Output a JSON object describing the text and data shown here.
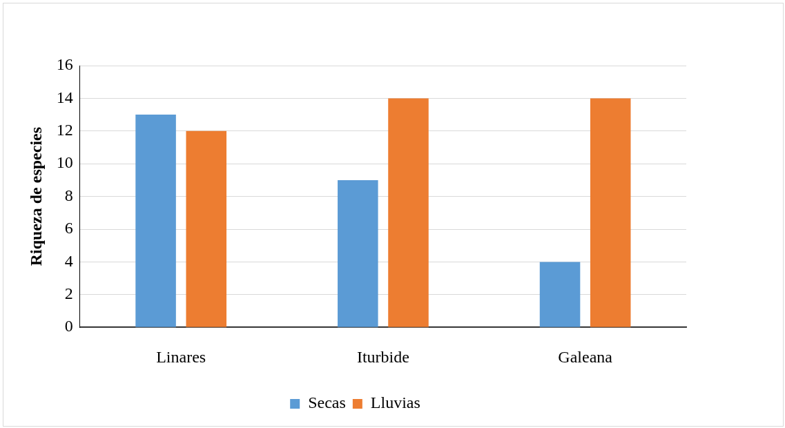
{
  "chart_data": {
    "type": "bar",
    "ylabel": "Riqueza de especies",
    "categories": [
      "Linares",
      "Iturbide",
      "Galeana"
    ],
    "series": [
      {
        "name": "Secas",
        "color": "#5b9bd5",
        "values": [
          13,
          9,
          4
        ]
      },
      {
        "name": "Lluvias",
        "color": "#ed7d31",
        "values": [
          12,
          14,
          14
        ]
      }
    ],
    "ylim": [
      0,
      16
    ],
    "yticks": [
      0,
      2,
      4,
      6,
      8,
      10,
      12,
      14,
      16
    ],
    "grid": "y",
    "legend": "bottom"
  }
}
